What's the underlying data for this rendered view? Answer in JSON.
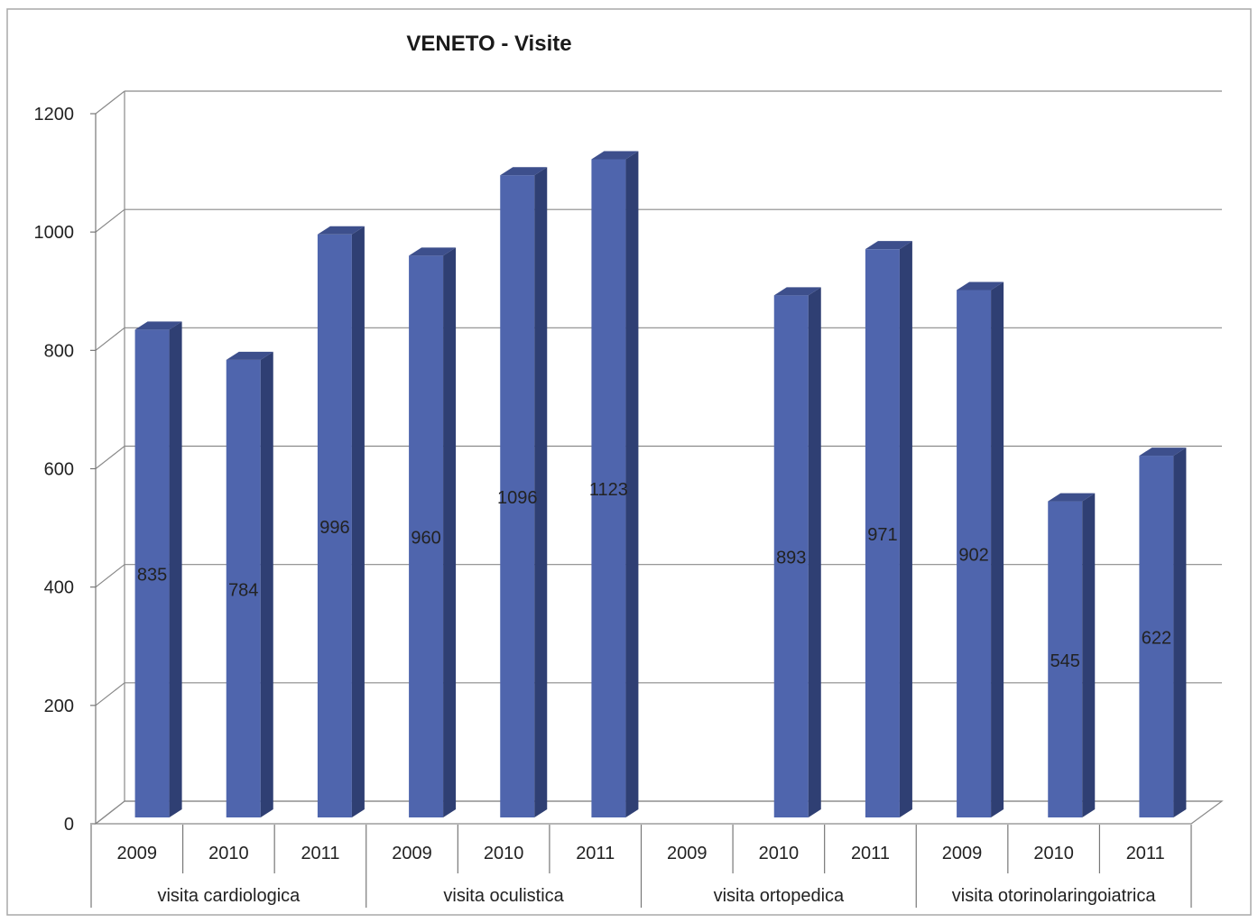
{
  "chart_data": {
    "type": "bar",
    "title": "VENETO - Visite",
    "xlabel": "",
    "ylabel": "",
    "ylim": [
      0,
      1200
    ],
    "yticks": [
      "0",
      "200",
      "400",
      "600",
      "800",
      "1000",
      "1200"
    ],
    "grid": true,
    "legend": "none",
    "bar_color": "#4f65ad",
    "groups": [
      "visita cardiologica",
      "visita oculistica",
      "visita ortopedica",
      "visita otorinolaringoiatrica"
    ],
    "categories": [
      "2009",
      "2010",
      "2011",
      "2009",
      "2010",
      "2011",
      "2009",
      "2010",
      "2011",
      "2009",
      "2010",
      "2011"
    ],
    "values": [
      835,
      784,
      996,
      960,
      1096,
      1123,
      null,
      893,
      971,
      902,
      545,
      622
    ],
    "data_labels": [
      "835",
      "784",
      "996",
      "960",
      "1096",
      "1123",
      "",
      "893",
      "971",
      "902",
      "545",
      "622"
    ]
  }
}
